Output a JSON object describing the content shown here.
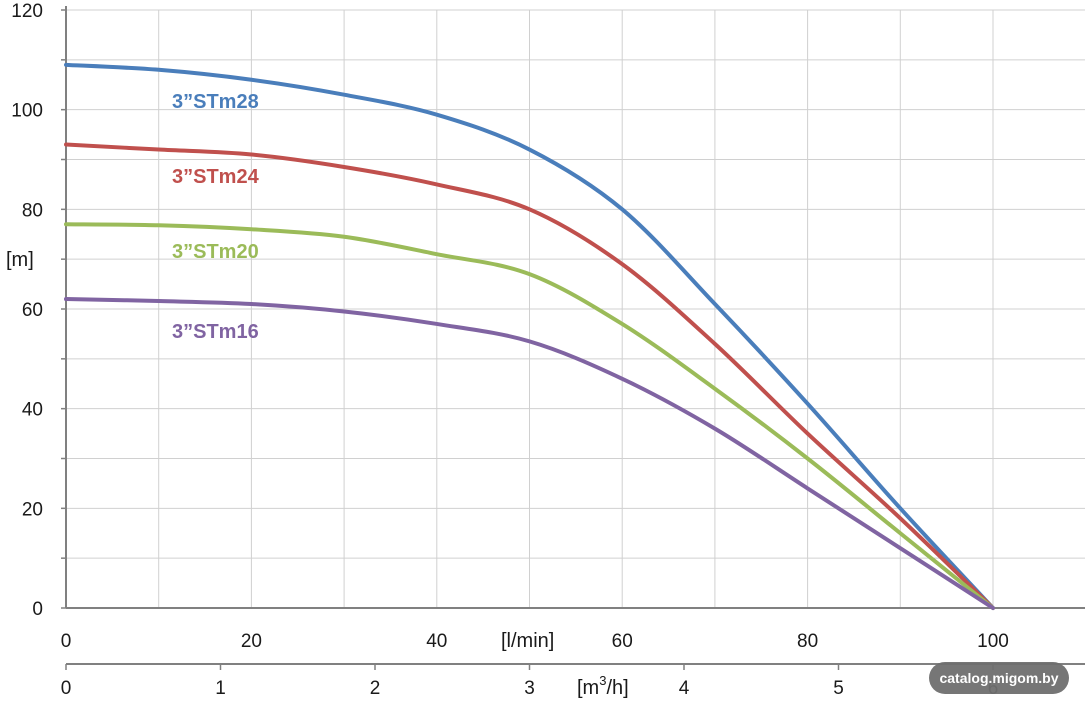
{
  "chart_data": {
    "type": "line",
    "title": "",
    "ylabel": "[m]",
    "xlabel_primary": "[l/min]",
    "xlabel_secondary_base": "[m",
    "xlabel_secondary_sup": "3",
    "xlabel_secondary_end": "/h]",
    "ylim": [
      0,
      120
    ],
    "xlim": [
      0,
      110
    ],
    "y_ticks": [
      "0",
      "20",
      "40",
      "60",
      "80",
      "100",
      "120"
    ],
    "x_ticks_lmin": [
      "0",
      "20",
      "40",
      "60",
      "80",
      "100"
    ],
    "x_ticks_m3h": [
      "0",
      "1",
      "2",
      "3",
      "4",
      "5",
      "6"
    ],
    "grid": true,
    "series": [
      {
        "name": "3”STm28",
        "color": "#4a7ebb",
        "x": [
          0,
          10,
          20,
          30,
          40,
          50,
          60,
          70,
          80,
          90,
          100
        ],
        "y": [
          109,
          108,
          106,
          103,
          99,
          92,
          80,
          61,
          41,
          20,
          0
        ]
      },
      {
        "name": "3”STm24",
        "color": "#c0504d",
        "x": [
          0,
          10,
          20,
          30,
          40,
          50,
          60,
          70,
          80,
          90,
          100
        ],
        "y": [
          93,
          92,
          91,
          88.5,
          85,
          80,
          69,
          53,
          35,
          18,
          0
        ]
      },
      {
        "name": "3”STm20",
        "color": "#9bbb59",
        "x": [
          0,
          10,
          20,
          30,
          40,
          50,
          60,
          70,
          80,
          90,
          100
        ],
        "y": [
          77,
          76.8,
          76,
          74.5,
          71,
          67,
          57,
          44,
          30,
          15,
          0
        ]
      },
      {
        "name": "3”STm16",
        "color": "#8064a2",
        "x": [
          0,
          10,
          20,
          30,
          40,
          50,
          60,
          70,
          80,
          90,
          100
        ],
        "y": [
          62,
          61.6,
          61,
          59.5,
          57,
          53.5,
          46,
          36,
          24,
          12,
          0
        ]
      }
    ]
  },
  "watermark": "catalog.migom.by"
}
